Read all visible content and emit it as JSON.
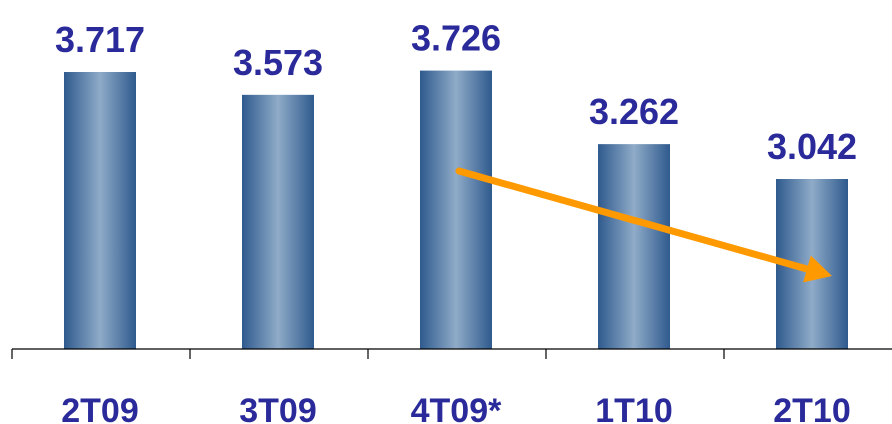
{
  "chart_data": {
    "type": "bar",
    "categories": [
      "2T09",
      "3T09",
      "4T09*",
      "1T10",
      "2T10"
    ],
    "values": [
      3.717,
      3.573,
      3.726,
      3.262,
      3.042
    ],
    "value_labels": [
      "3.717",
      "3.573",
      "3.726",
      "3.262",
      "3.042"
    ],
    "title": "",
    "xlabel": "",
    "ylabel": "",
    "grid": false,
    "legend": "none",
    "annotations": [
      {
        "type": "trend-arrow",
        "from_category": "4T09*",
        "to_category": "2T10"
      }
    ],
    "colors": {
      "bar_edge": "#2f5a8e",
      "bar_center": "#8fabc8",
      "label_text": "#2a2a9a",
      "category_text": "#2a2a9a",
      "axis": "#000000",
      "arrow": "#ff9900"
    }
  }
}
